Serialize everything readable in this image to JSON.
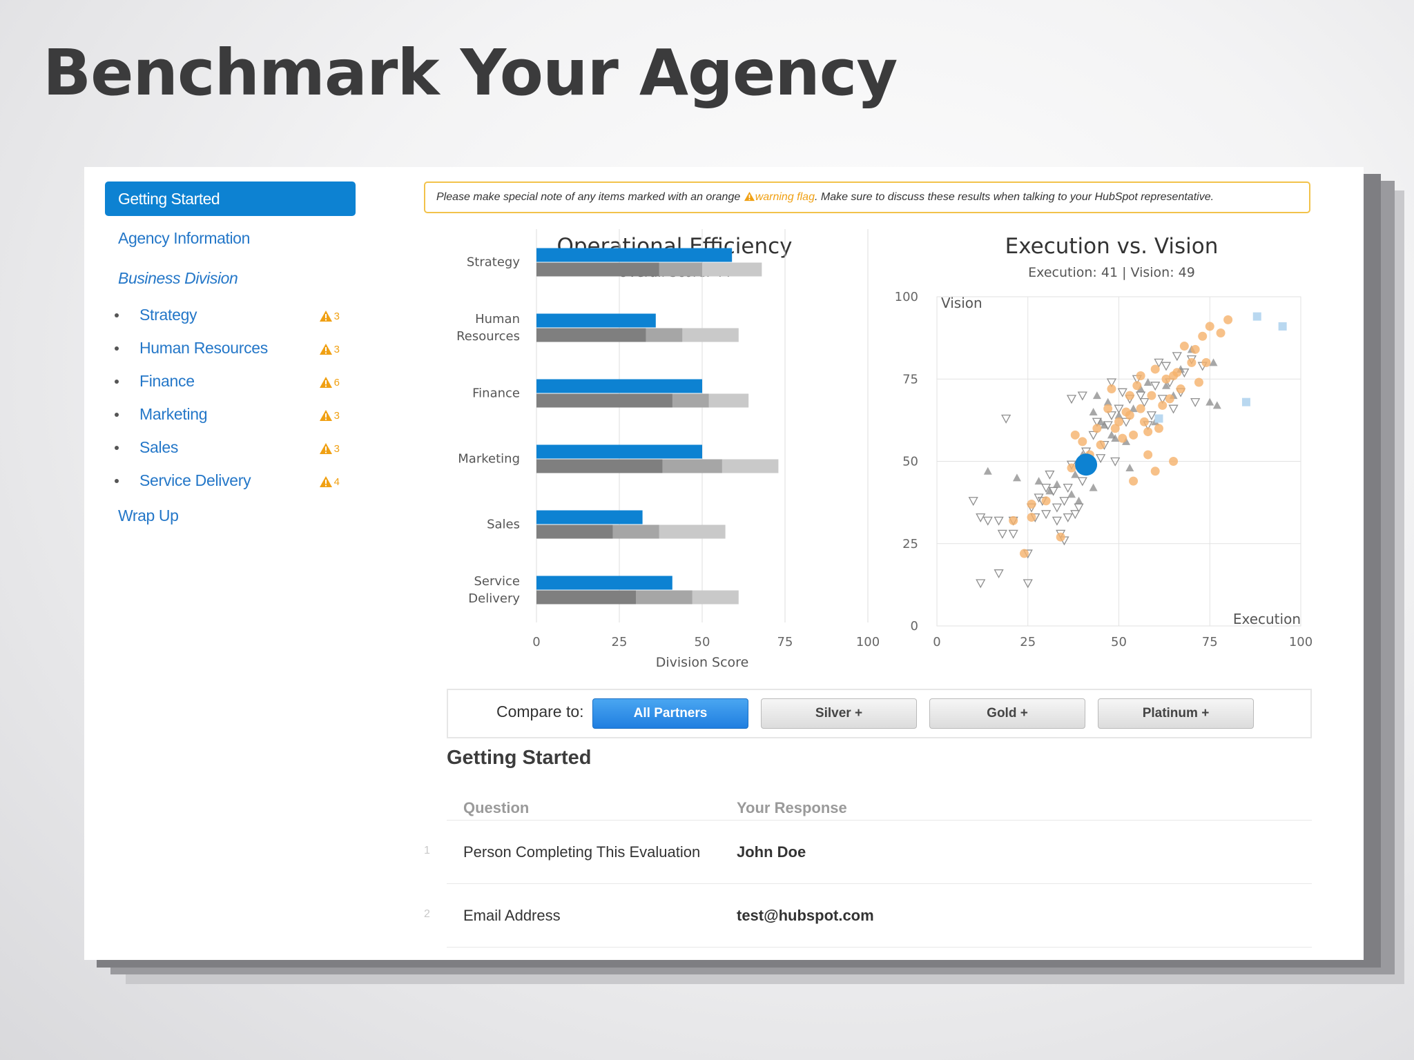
{
  "slide_title": "Benchmark Your Agency",
  "sidebar": {
    "active": "Getting Started",
    "agency_info": "Agency Information",
    "business_division": "Business Division",
    "items": [
      {
        "label": "Strategy",
        "warnings": "3"
      },
      {
        "label": "Human Resources",
        "warnings": "3"
      },
      {
        "label": "Finance",
        "warnings": "6"
      },
      {
        "label": "Marketing",
        "warnings": "3"
      },
      {
        "label": "Sales",
        "warnings": "3"
      },
      {
        "label": "Service Delivery",
        "warnings": "4"
      }
    ],
    "wrap_up": "Wrap Up"
  },
  "notice": {
    "before": "Please make special note of any items marked with an orange ",
    "flag": "warning flag",
    "after": ". Make sure to discuss these results when talking to your HubSpot representative."
  },
  "colors": {
    "accent": "#0d82d2",
    "warning": "#f0a013",
    "scatter_orange": "#f5b26b",
    "scatter_gray": "#8a8a8a",
    "scatter_blue": "#b9d8f0"
  },
  "chart_data": [
    {
      "type": "bar",
      "title": "Operational Efficiency",
      "subtitle": "Overall Score: 44",
      "xlabel": "Division Score",
      "xlim": [
        0,
        100
      ],
      "xticks": [
        "0",
        "25",
        "50",
        "75",
        "100"
      ],
      "categories": [
        [
          "Strategy"
        ],
        [
          "Human",
          "Resources"
        ],
        [
          "Finance"
        ],
        [
          "Marketing"
        ],
        [
          "Sales"
        ],
        [
          "Service",
          "Delivery"
        ]
      ],
      "series": [
        {
          "values": [
            59,
            36,
            50,
            50,
            32,
            41
          ]
        },
        {
          "values": [
            37,
            33,
            41,
            38,
            23,
            30
          ]
        },
        {
          "values": [
            50,
            44,
            52,
            56,
            37,
            47
          ]
        },
        {
          "values": [
            68,
            61,
            64,
            73,
            57,
            61
          ]
        }
      ]
    },
    {
      "type": "scatter",
      "title": "Execution vs. Vision",
      "subtitle": "Execution: 41 | Vision: 49",
      "xlabel": "Execution",
      "ylabel": "Vision",
      "xlim": [
        0,
        100
      ],
      "ylim": [
        0,
        100
      ],
      "xticks": [
        "0",
        "25",
        "50",
        "75",
        "100"
      ],
      "yticks": [
        "0",
        "25",
        "50",
        "75",
        "100"
      ],
      "highlight": {
        "x": 41,
        "y": 49
      },
      "orange": [
        [
          21,
          32
        ],
        [
          24,
          22
        ],
        [
          26,
          37
        ],
        [
          26,
          33
        ],
        [
          30,
          38
        ],
        [
          34,
          27
        ],
        [
          37,
          48
        ],
        [
          38,
          58
        ],
        [
          40,
          56
        ],
        [
          42,
          52
        ],
        [
          44,
          60
        ],
        [
          45,
          55
        ],
        [
          47,
          66
        ],
        [
          48,
          72
        ],
        [
          49,
          60
        ],
        [
          50,
          62
        ],
        [
          51,
          57
        ],
        [
          52,
          65
        ],
        [
          53,
          64
        ],
        [
          53,
          70
        ],
        [
          54,
          58
        ],
        [
          55,
          73
        ],
        [
          56,
          66
        ],
        [
          56,
          76
        ],
        [
          57,
          62
        ],
        [
          58,
          59
        ],
        [
          59,
          70
        ],
        [
          60,
          78
        ],
        [
          61,
          60
        ],
        [
          62,
          67
        ],
        [
          63,
          75
        ],
        [
          64,
          69
        ],
        [
          65,
          76
        ],
        [
          65,
          50
        ],
        [
          66,
          77
        ],
        [
          67,
          72
        ],
        [
          68,
          85
        ],
        [
          70,
          80
        ],
        [
          71,
          84
        ],
        [
          72,
          74
        ],
        [
          73,
          88
        ],
        [
          74,
          80
        ],
        [
          75,
          91
        ],
        [
          78,
          89
        ],
        [
          80,
          93
        ],
        [
          54,
          44
        ],
        [
          58,
          52
        ],
        [
          60,
          47
        ]
      ],
      "gray_triangles": [
        [
          14,
          47
        ],
        [
          22,
          45
        ],
        [
          28,
          44
        ],
        [
          31,
          41
        ],
        [
          33,
          43
        ],
        [
          37,
          40
        ],
        [
          38,
          46
        ],
        [
          39,
          38
        ],
        [
          40,
          52
        ],
        [
          43,
          42
        ],
        [
          43,
          65
        ],
        [
          44,
          70
        ],
        [
          45,
          62
        ],
        [
          46,
          61
        ],
        [
          47,
          68
        ],
        [
          48,
          58
        ],
        [
          49,
          57
        ],
        [
          50,
          64
        ],
        [
          52,
          56
        ],
        [
          53,
          48
        ],
        [
          54,
          66
        ],
        [
          56,
          72
        ],
        [
          58,
          74
        ],
        [
          60,
          62
        ],
        [
          63,
          73
        ],
        [
          65,
          70
        ],
        [
          67,
          78
        ],
        [
          70,
          84
        ],
        [
          75,
          68
        ],
        [
          76,
          80
        ],
        [
          77,
          67
        ]
      ],
      "hollow_triangles": [
        [
          10,
          38
        ],
        [
          12,
          33
        ],
        [
          14,
          32
        ],
        [
          17,
          32
        ],
        [
          18,
          28
        ],
        [
          17,
          16
        ],
        [
          12,
          13
        ],
        [
          21,
          28
        ],
        [
          21,
          32
        ],
        [
          25,
          13
        ],
        [
          25,
          22
        ],
        [
          26,
          36
        ],
        [
          27,
          33
        ],
        [
          28,
          39
        ],
        [
          29,
          38
        ],
        [
          30,
          34
        ],
        [
          30,
          42
        ],
        [
          31,
          46
        ],
        [
          32,
          41
        ],
        [
          33,
          32
        ],
        [
          33,
          36
        ],
        [
          34,
          28
        ],
        [
          35,
          38
        ],
        [
          35,
          26
        ],
        [
          36,
          33
        ],
        [
          36,
          42
        ],
        [
          37,
          49
        ],
        [
          38,
          34
        ],
        [
          39,
          36
        ],
        [
          40,
          44
        ],
        [
          41,
          53
        ],
        [
          42,
          48
        ],
        [
          43,
          58
        ],
        [
          44,
          62
        ],
        [
          45,
          51
        ],
        [
          46,
          55
        ],
        [
          47,
          61
        ],
        [
          48,
          64
        ],
        [
          48,
          74
        ],
        [
          49,
          50
        ],
        [
          50,
          66
        ],
        [
          51,
          71
        ],
        [
          52,
          62
        ],
        [
          53,
          69
        ],
        [
          55,
          75
        ],
        [
          56,
          70
        ],
        [
          57,
          68
        ],
        [
          58,
          61
        ],
        [
          59,
          64
        ],
        [
          60,
          73
        ],
        [
          61,
          80
        ],
        [
          62,
          69
        ],
        [
          63,
          79
        ],
        [
          64,
          74
        ],
        [
          65,
          66
        ],
        [
          66,
          82
        ],
        [
          67,
          71
        ],
        [
          68,
          77
        ],
        [
          70,
          81
        ],
        [
          71,
          68
        ],
        [
          73,
          79
        ],
        [
          19,
          63
        ],
        [
          37,
          69
        ],
        [
          40,
          70
        ]
      ],
      "blue_squares": [
        [
          88,
          94
        ],
        [
          95,
          91
        ],
        [
          85,
          68
        ],
        [
          61,
          63
        ]
      ]
    }
  ],
  "compare": {
    "label": "Compare to:",
    "buttons": [
      "All Partners",
      "Silver +",
      "Gold +",
      "Platinum +"
    ],
    "active_index": 0
  },
  "section": {
    "title": "Getting Started",
    "columns": [
      "Question",
      "Your Response"
    ],
    "rows": [
      {
        "num": "1",
        "question": "Person Completing This Evaluation",
        "response": "John Doe"
      },
      {
        "num": "2",
        "question": "Email Address",
        "response": "test@hubspot.com"
      }
    ]
  }
}
